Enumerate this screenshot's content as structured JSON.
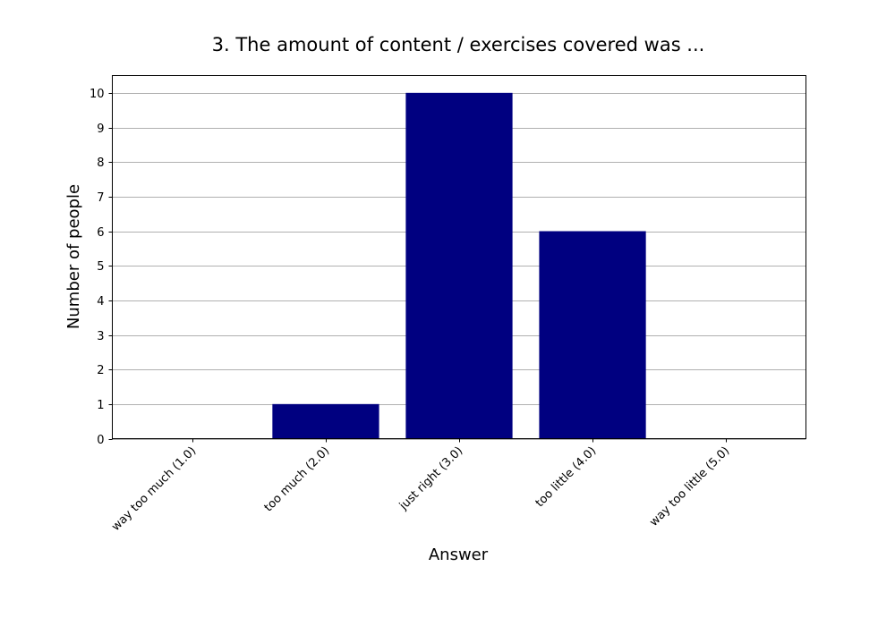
{
  "chart_data": {
    "type": "bar",
    "title": "3. The amount of content / exercises covered was ...",
    "xlabel": "Answer",
    "ylabel": "Number of people",
    "categories": [
      "way too much (1.0)",
      "too much (2.0)",
      "just right (3.0)",
      "too little (4.0)",
      "way too little (5.0)"
    ],
    "values": [
      0,
      1,
      10,
      6,
      0
    ],
    "ylim": [
      0,
      10.5
    ],
    "yticks": [
      0,
      1,
      2,
      3,
      4,
      5,
      6,
      7,
      8,
      9,
      10
    ],
    "grid": "horizontal",
    "bar_color": "#000080"
  }
}
